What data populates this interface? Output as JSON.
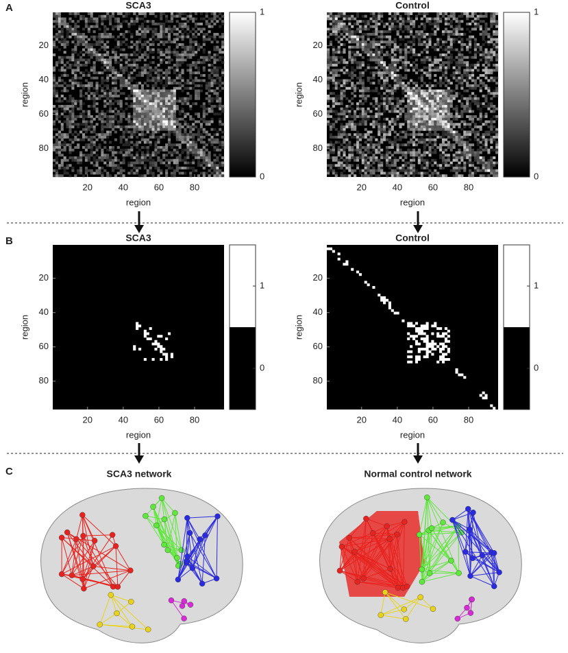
{
  "panels": [
    {
      "label": "A",
      "matrices": [
        {
          "title": "SCA3",
          "xlabel": "region",
          "ylabel": "region",
          "lim": [
            0.5,
            96.5
          ],
          "xticks": [
            20,
            40,
            60,
            80
          ],
          "yticks": [
            20,
            40,
            60,
            80
          ],
          "colorbar_lim": [
            0,
            1
          ],
          "colorbar_ticks": [
            0,
            1
          ]
        },
        {
          "title": "Control",
          "xlabel": "region",
          "ylabel": "region",
          "lim": [
            0.5,
            96.5
          ],
          "xticks": [
            20,
            40,
            60,
            80
          ],
          "yticks": [
            20,
            40,
            60,
            80
          ],
          "colorbar_lim": [
            0,
            1
          ],
          "colorbar_ticks": [
            0,
            1
          ]
        }
      ]
    },
    {
      "label": "B",
      "matrices": [
        {
          "title": "SCA3",
          "xlabel": "region",
          "ylabel": "region",
          "lim": [
            0.5,
            96.5
          ],
          "xticks": [
            20,
            40,
            60,
            80
          ],
          "yticks": [
            20,
            40,
            60,
            80
          ],
          "colorbar_lim": [
            -0.5,
            1.5
          ],
          "colorbar_ticks": [
            0,
            1
          ]
        },
        {
          "title": "Control",
          "xlabel": "region",
          "ylabel": "region",
          "lim": [
            0.5,
            96.5
          ],
          "xticks": [
            20,
            40,
            60,
            80
          ],
          "yticks": [
            20,
            40,
            60,
            80
          ],
          "colorbar_lim": [
            -0.5,
            1.5
          ],
          "colorbar_ticks": [
            0,
            1
          ]
        }
      ]
    },
    {
      "label": "C",
      "networks": [
        "SCA3 network",
        "Normal control network"
      ]
    }
  ]
}
